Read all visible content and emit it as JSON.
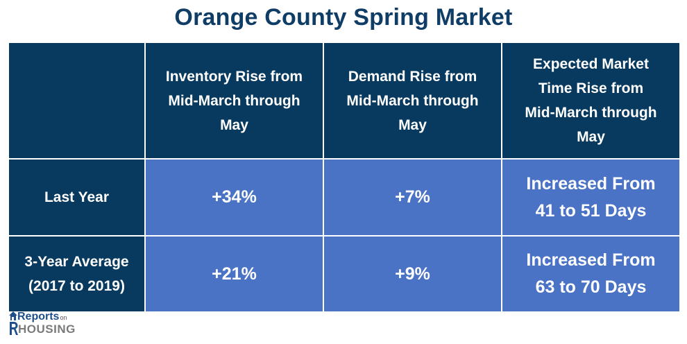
{
  "title": "Orange County Spring Market",
  "table": {
    "headers": [
      "",
      [
        "Inventory Rise from",
        "Mid-March through",
        "May"
      ],
      [
        "Demand Rise from",
        "Mid-March through",
        "May"
      ],
      [
        "Expected Market",
        "Time Rise from",
        "Mid-March through",
        "May"
      ]
    ],
    "rows": [
      {
        "label": [
          "Last Year"
        ],
        "inventory": "+34%",
        "demand": "+7%",
        "market_time": [
          "Increased From",
          "41 to 51 Days"
        ]
      },
      {
        "label": [
          "3-Year Average",
          "(2017 to 2019)"
        ],
        "inventory": "+21%",
        "demand": "+9%",
        "market_time": [
          "Increased From",
          "63 to 70 Days"
        ]
      }
    ]
  },
  "logo": {
    "line1": "Reports",
    "line1_small": "on",
    "line2": "HOUSING"
  },
  "colors": {
    "title": "#0f3d66",
    "header_bg": "#073a5e",
    "value_bg": "#4a73c6",
    "text": "#ffffff"
  }
}
